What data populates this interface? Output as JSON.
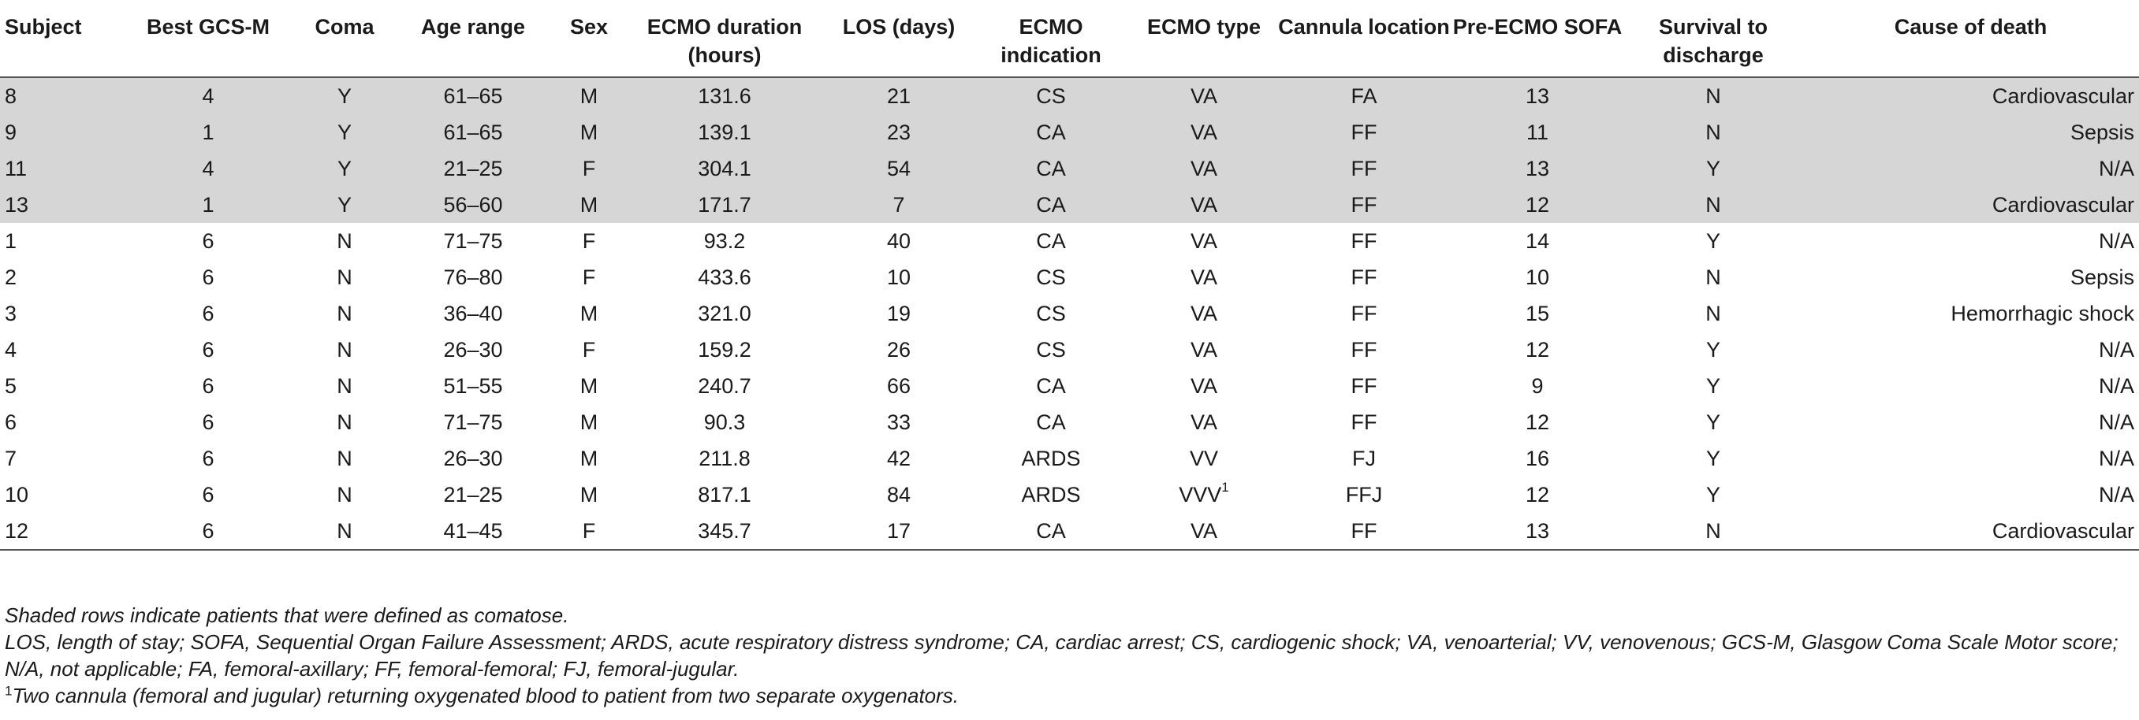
{
  "table": {
    "headers": [
      "Subject",
      "Best GCS-M",
      "Coma",
      "Age range",
      "Sex",
      "ECMO duration (hours)",
      "LOS (days)",
      "ECMO indication",
      "ECMO type",
      "Cannula location",
      "Pre-ECMO SOFA",
      "Survival to discharge",
      "Cause of death"
    ],
    "rows": [
      {
        "shaded": true,
        "cells": [
          "8",
          "4",
          "Y",
          "61–65",
          "M",
          "131.6",
          "21",
          "CS",
          "VA",
          "FA",
          "13",
          "N",
          "Cardiovascular"
        ]
      },
      {
        "shaded": true,
        "cells": [
          "9",
          "1",
          "Y",
          "61–65",
          "M",
          "139.1",
          "23",
          "CA",
          "VA",
          "FF",
          "11",
          "N",
          "Sepsis"
        ]
      },
      {
        "shaded": true,
        "cells": [
          "11",
          "4",
          "Y",
          "21–25",
          "F",
          "304.1",
          "54",
          "CA",
          "VA",
          "FF",
          "13",
          "Y",
          "N/A"
        ]
      },
      {
        "shaded": true,
        "cells": [
          "13",
          "1",
          "Y",
          "56–60",
          "M",
          "171.7",
          "7",
          "CA",
          "VA",
          "FF",
          "12",
          "N",
          "Cardiovascular"
        ]
      },
      {
        "shaded": false,
        "cells": [
          "1",
          "6",
          "N",
          "71–75",
          "F",
          "93.2",
          "40",
          "CA",
          "VA",
          "FF",
          "14",
          "Y",
          "N/A"
        ]
      },
      {
        "shaded": false,
        "cells": [
          "2",
          "6",
          "N",
          "76–80",
          "F",
          "433.6",
          "10",
          "CS",
          "VA",
          "FF",
          "10",
          "N",
          "Sepsis"
        ]
      },
      {
        "shaded": false,
        "cells": [
          "3",
          "6",
          "N",
          "36–40",
          "M",
          "321.0",
          "19",
          "CS",
          "VA",
          "FF",
          "15",
          "N",
          "Hemorrhagic shock"
        ]
      },
      {
        "shaded": false,
        "cells": [
          "4",
          "6",
          "N",
          "26–30",
          "F",
          "159.2",
          "26",
          "CS",
          "VA",
          "FF",
          "12",
          "Y",
          "N/A"
        ]
      },
      {
        "shaded": false,
        "cells": [
          "5",
          "6",
          "N",
          "51–55",
          "M",
          "240.7",
          "66",
          "CA",
          "VA",
          "FF",
          "9",
          "Y",
          "N/A"
        ]
      },
      {
        "shaded": false,
        "cells": [
          "6",
          "6",
          "N",
          "71–75",
          "M",
          "90.3",
          "33",
          "CA",
          "VA",
          "FF",
          "12",
          "Y",
          "N/A"
        ]
      },
      {
        "shaded": false,
        "cells": [
          "7",
          "6",
          "N",
          "26–30",
          "M",
          "211.8",
          "42",
          "ARDS",
          "VV",
          "FJ",
          "16",
          "Y",
          "N/A"
        ]
      },
      {
        "shaded": false,
        "cells": [
          "10",
          "6",
          "N",
          "21–25",
          "M",
          "817.1",
          "84",
          "ARDS",
          "VVV",
          "FFJ",
          "12",
          "Y",
          "N/A"
        ],
        "ecmo_type_sup": "1"
      },
      {
        "shaded": false,
        "cells": [
          "12",
          "6",
          "N",
          "41–45",
          "F",
          "345.7",
          "17",
          "CA",
          "VA",
          "FF",
          "13",
          "N",
          "Cardiovascular"
        ]
      }
    ],
    "shade_color": "#d6d6d6"
  },
  "notes": {
    "shading": "Shaded rows indicate patients that were defined as comatose.",
    "abbreviations": "LOS, length of stay; SOFA, Sequential Organ Failure Assessment; ARDS, acute respiratory distress syndrome; CA, cardiac arrest; CS, cardiogenic shock; VA, venoarterial; VV, venovenous; GCS-M, Glasgow Coma Scale Motor score; N/A, not applicable; FA, femoral-axillary; FF, femoral-femoral; FJ, femoral-jugular.",
    "footnote_mark": "1",
    "footnote": "Two cannula (femoral and jugular) returning oxygenated blood to patient from two separate oxygenators."
  }
}
